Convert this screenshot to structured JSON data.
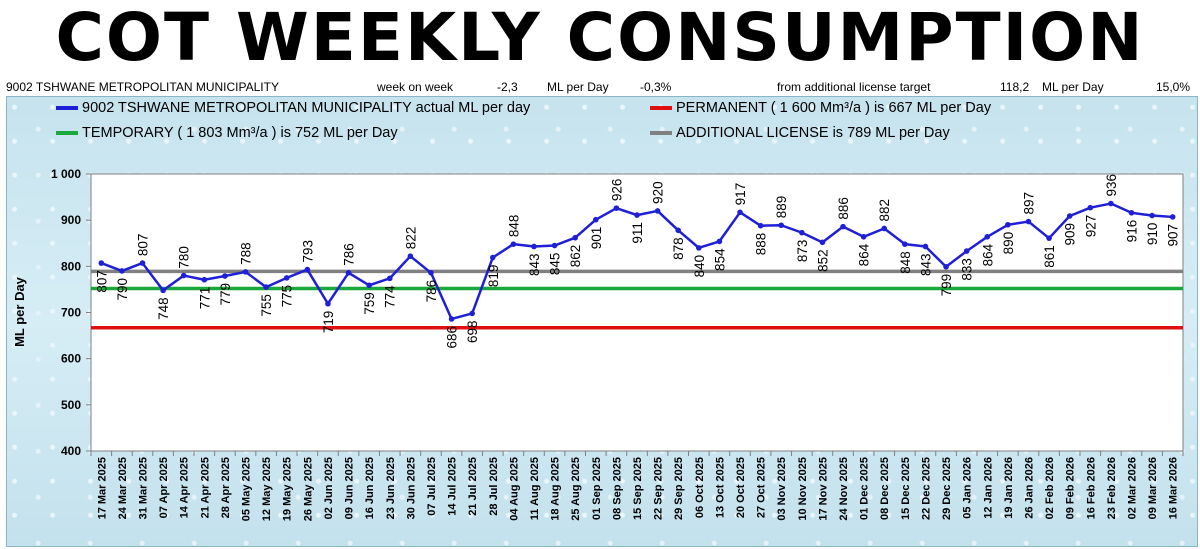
{
  "header": {
    "title": "COT WEEKLY CONSUMPTION",
    "municipality": "9002 TSHWANE METROPOLITAN MUNICIPALITY",
    "wow_label": "week on week",
    "wow_value": "-2,3",
    "unit_label": "ML per Day",
    "wow_pct": "-0,3%",
    "license_label": "from additional license target",
    "license_value": "118,2",
    "license_unit": "ML per Day",
    "license_pct": "15,0%"
  },
  "legend": {
    "actual": "9002 TSHWANE METROPOLITAN MUNICIPALITY actual ML per day",
    "permanent": "PERMANENT ( 1 600 Mm³/a ) is 667 ML per Day",
    "temporary": "TEMPORARY ( 1 803 Mm³/a ) is 752 ML per Day",
    "additional": "ADDITIONAL LICENSE is 789 ML per Day"
  },
  "colors": {
    "actual": "#1f1fd6",
    "permanent": "#e01010",
    "temporary": "#1aa83a",
    "additional": "#808080"
  },
  "chart_data": {
    "type": "line",
    "title": "COT WEEKLY CONSUMPTION",
    "xlabel": "",
    "ylabel": "ML per Day",
    "ylim": [
      400,
      1000
    ],
    "yticks": [
      400,
      500,
      600,
      700,
      800,
      900,
      1000
    ],
    "ytick_labels": [
      "400",
      "500",
      "600",
      "700",
      "800",
      "900",
      "1 000"
    ],
    "grid": false,
    "categories": [
      "17 Mar 2025",
      "24 Mar 2025",
      "31 Mar 2025",
      "07 Apr 2025",
      "14 Apr 2025",
      "21 Apr 2025",
      "28 Apr 2025",
      "05 May 2025",
      "12 May 2025",
      "19 May 2025",
      "26 May 2025",
      "02 Jun 2025",
      "09 Jun 2025",
      "16 Jun 2025",
      "23 Jun 2025",
      "30 Jun 2025",
      "07 Jul 2025",
      "14 Jul 2025",
      "21 Jul 2025",
      "28 Jul 2025",
      "04 Aug 2025",
      "11 Aug 2025",
      "18 Aug 2025",
      "25 Aug 2025",
      "01 Sep 2025",
      "08 Sep 2025",
      "15 Sep 2025",
      "22 Sep 2025",
      "29 Sep 2025",
      "06 Oct 2025",
      "13 Oct 2025",
      "20 Oct 2025",
      "27 Oct 2025",
      "03 Nov 2025",
      "10 Nov 2025",
      "17 Nov 2025",
      "24 Nov 2025",
      "01 Dec 2025",
      "08 Dec 2025",
      "15 Dec 2025",
      "22 Dec 2025",
      "29 Dec 2025",
      "05 Jan 2026",
      "12 Jan 2026",
      "19 Jan 2026",
      "26 Jan 2026",
      "02 Feb 2026",
      "09 Feb 2026",
      "16 Feb 2026",
      "23 Feb 2026",
      "02 Mar 2026",
      "09 Mar 2026",
      "16 Mar 2026"
    ],
    "series": [
      {
        "name": "9002 TSHWANE METROPOLITAN MUNICIPALITY actual ML per day",
        "values": [
          807,
          790,
          807,
          748,
          780,
          771,
          779,
          788,
          755,
          775,
          793,
          719,
          786,
          759,
          774,
          822,
          786,
          686,
          698,
          819,
          848,
          843,
          845,
          862,
          901,
          926,
          911,
          920,
          878,
          840,
          854,
          917,
          888,
          889,
          873,
          852,
          886,
          864,
          882,
          848,
          843,
          799,
          833,
          864,
          890,
          897,
          861,
          909,
          927,
          936,
          916,
          910,
          907
        ]
      },
      {
        "name": "PERMANENT",
        "constant": 667
      },
      {
        "name": "TEMPORARY",
        "constant": 752
      },
      {
        "name": "ADDITIONAL LICENSE",
        "constant": 789
      }
    ]
  }
}
